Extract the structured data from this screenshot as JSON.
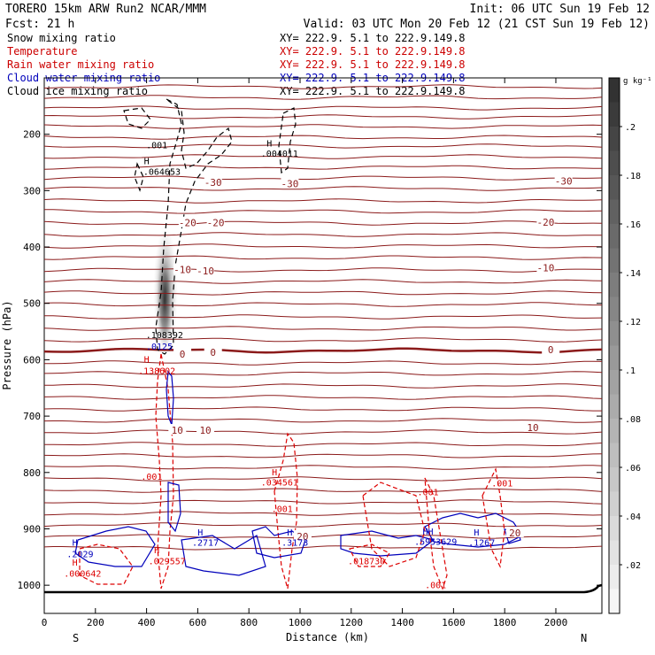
{
  "header": {
    "model": "TORERO  15km ARW   Run2    NCAR/MMM",
    "init": "Init: 06 UTC Sun 19 Feb 12",
    "fcst": "Fcst:   21 h",
    "valid": "Valid: 03 UTC Mon 20 Feb 12 (21 CST Sun 19 Feb 12)"
  },
  "legend": [
    {
      "label": "Snow mixing ratio",
      "xy": "XY= 222.9.  5.1 to 222.9.149.8",
      "color": "#000000"
    },
    {
      "label": "Temperature",
      "xy": "XY= 222.9.  5.1 to 222.9.149.8",
      "color": "#cc0000"
    },
    {
      "label": "Rain water mixing ratio",
      "xy": "XY= 222.9.  5.1 to 222.9.149.8",
      "color": "#cc0000"
    },
    {
      "label": "Cloud water mixing ratio",
      "xy": "XY= 222.9.  5.1 to 222.9.149.8",
      "color": "#0000bb"
    },
    {
      "label": "Cloud ice mixing ratio",
      "xy": "XY= 222.9.  5.1 to 222.9.149.8",
      "color": "#000000"
    }
  ],
  "colors": {
    "temperature": "#8b1a1a",
    "rain": "#dd0000",
    "cloud_water": "#0000bb",
    "ice": "#000000",
    "terrain": "#000000"
  },
  "chart_data": {
    "type": "cross-section",
    "xlabel": "Distance (km)",
    "ylabel": "Pressure (hPa)",
    "xlim": [
      0,
      2180
    ],
    "ylim": [
      100,
      1050
    ],
    "x_ticks": [
      0,
      200,
      400,
      600,
      800,
      1000,
      1200,
      1400,
      1600,
      1800,
      2000
    ],
    "y_ticks": [
      200,
      300,
      400,
      500,
      600,
      700,
      800,
      900,
      1000
    ],
    "end_labels": {
      "left": "S",
      "right": "N"
    },
    "colorbar": {
      "unit": "g kg⁻¹",
      "ticks": [
        ".02",
        ".04",
        ".06",
        ".08",
        ".1",
        ".12",
        ".14",
        ".16",
        ".18",
        ".2"
      ],
      "values": [
        0.02,
        0.04,
        0.06,
        0.08,
        0.1,
        0.12,
        0.14,
        0.16,
        0.18,
        0.2
      ],
      "range": [
        0,
        0.22
      ]
    },
    "temperature_isotherms": {
      "bold_zero_pressure": 585,
      "labels": [
        {
          "text": "-30",
          "x": 660,
          "p": 285
        },
        {
          "text": "-30",
          "x": 960,
          "p": 288
        },
        {
          "text": "-30",
          "x": 2030,
          "p": 283
        },
        {
          "text": "-20",
          "x": 560,
          "p": 357
        },
        {
          "text": "-20",
          "x": 670,
          "p": 357
        },
        {
          "text": "-20",
          "x": 1960,
          "p": 356
        },
        {
          "text": "-10",
          "x": 540,
          "p": 440
        },
        {
          "text": "-10",
          "x": 630,
          "p": 442
        },
        {
          "text": "-10",
          "x": 1960,
          "p": 437
        },
        {
          "text": "0",
          "x": 540,
          "p": 590
        },
        {
          "text": "0",
          "x": 660,
          "p": 587
        },
        {
          "text": "0",
          "x": 1980,
          "p": 582
        },
        {
          "text": "10",
          "x": 520,
          "p": 725
        },
        {
          "text": "10",
          "x": 630,
          "p": 725
        },
        {
          "text": "10",
          "x": 1910,
          "p": 720
        },
        {
          "text": "20",
          "x": 1010,
          "p": 913
        },
        {
          "text": "20",
          "x": 1840,
          "p": 907
        }
      ]
    },
    "maxima_labels": [
      {
        "text": ".001",
        "x": 440,
        "p": 225,
        "kind": "ice"
      },
      {
        "text": "H",
        "x": 400,
        "p": 253,
        "kind": "ice"
      },
      {
        "text": ".064653",
        "x": 460,
        "p": 272,
        "kind": "ice"
      },
      {
        "text": "H",
        "x": 880,
        "p": 222,
        "kind": "ice"
      },
      {
        "text": ".004011",
        "x": 920,
        "p": 240,
        "kind": "ice"
      },
      {
        "text": ".108392",
        "x": 470,
        "p": 562,
        "kind": "ice"
      },
      {
        "text": ".0125",
        "x": 450,
        "p": 582,
        "kind": "cloud"
      },
      {
        "text": "H",
        "x": 400,
        "p": 605,
        "kind": "rain"
      },
      {
        "text": ".138602",
        "x": 440,
        "p": 625,
        "kind": "rain"
      },
      {
        "text": ".001",
        "x": 420,
        "p": 813,
        "kind": "rain"
      },
      {
        "text": "H",
        "x": 900,
        "p": 805,
        "kind": "rain"
      },
      {
        "text": ".034561",
        "x": 920,
        "p": 823,
        "kind": "rain"
      },
      {
        "text": ".001",
        "x": 930,
        "p": 870,
        "kind": "rain"
      },
      {
        "text": ".001",
        "x": 1500,
        "p": 840,
        "kind": "rain"
      },
      {
        "text": ".001",
        "x": 1790,
        "p": 825,
        "kind": "rain"
      },
      {
        "text": "H",
        "x": 120,
        "p": 930,
        "kind": "cloud"
      },
      {
        "text": ".2029",
        "x": 140,
        "p": 950,
        "kind": "cloud"
      },
      {
        "text": "H",
        "x": 120,
        "p": 965,
        "kind": "rain"
      },
      {
        "text": ".000642",
        "x": 150,
        "p": 985,
        "kind": "rain"
      },
      {
        "text": "H",
        "x": 440,
        "p": 943,
        "kind": "rain"
      },
      {
        "text": ".029557",
        "x": 480,
        "p": 963,
        "kind": "rain"
      },
      {
        "text": "H",
        "x": 610,
        "p": 912,
        "kind": "cloud"
      },
      {
        "text": ".2717",
        "x": 630,
        "p": 930,
        "kind": "cloud"
      },
      {
        "text": "H",
        "x": 960,
        "p": 912,
        "kind": "cloud"
      },
      {
        "text": ".3173",
        "x": 980,
        "p": 930,
        "kind": "cloud"
      },
      {
        "text": ".018730",
        "x": 1260,
        "p": 963,
        "kind": "rain"
      },
      {
        "text": "HH",
        "x": 1500,
        "p": 910,
        "kind": "cloud"
      },
      {
        "text": ".5953629",
        "x": 1530,
        "p": 928,
        "kind": "cloud"
      },
      {
        "text": "H",
        "x": 1690,
        "p": 912,
        "kind": "cloud"
      },
      {
        "text": ".1267",
        "x": 1710,
        "p": 930,
        "kind": "cloud"
      },
      {
        "text": ".001",
        "x": 1530,
        "p": 1005,
        "kind": "rain"
      }
    ]
  }
}
